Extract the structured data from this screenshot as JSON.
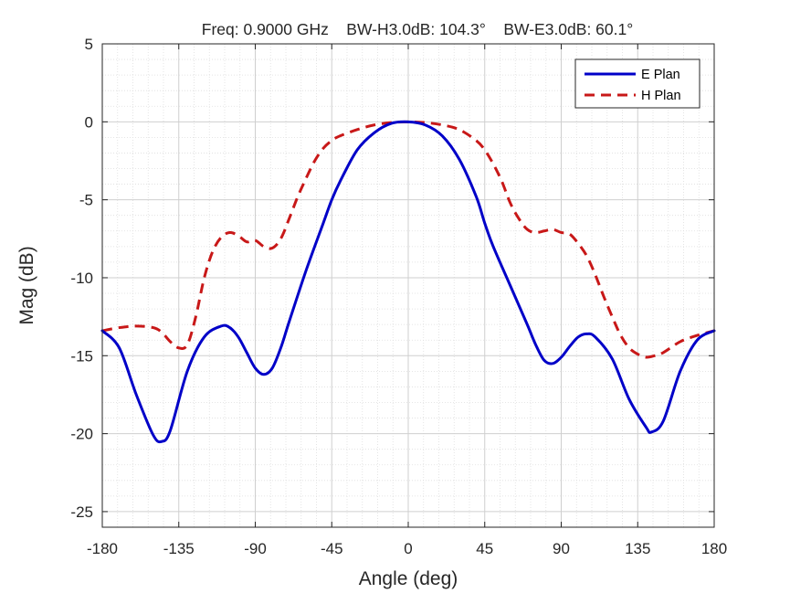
{
  "chart_data": {
    "type": "line",
    "title": "Freq: 0.9000 GHz    BW-H3.0dB: 104.3°    BW-E3.0dB: 60.1°",
    "xlabel": "Angle (deg)",
    "ylabel": "Mag (dB)",
    "xlim": [
      -180,
      180
    ],
    "ylim": [
      -26,
      5
    ],
    "xticks": [
      -180,
      -135,
      -90,
      -45,
      0,
      45,
      90,
      135,
      180
    ],
    "yticks": [
      5,
      0,
      -5,
      -10,
      -15,
      -20,
      -25
    ],
    "grid": true,
    "minor_grid": true,
    "legend_position": "top-right",
    "series": [
      {
        "name": "E Plan",
        "color": "#0000c8",
        "style": "solid",
        "x": [
          -180,
          -170,
          -160,
          -150,
          -145,
          -140,
          -130,
          -120,
          -110,
          -105,
          -100,
          -95,
          -90,
          -85,
          -80,
          -75,
          -70,
          -60,
          -50,
          -45,
          -40,
          -30,
          -20,
          -10,
          0,
          10,
          20,
          30,
          40,
          45,
          50,
          60,
          70,
          75,
          80,
          85,
          90,
          95,
          100,
          105,
          110,
          120,
          130,
          140,
          143,
          150,
          160,
          170,
          180
        ],
        "y": [
          -13.4,
          -14.5,
          -17.5,
          -20.1,
          -20.5,
          -19.8,
          -16.0,
          -13.8,
          -13.1,
          -13.2,
          -13.8,
          -14.8,
          -15.8,
          -16.2,
          -15.8,
          -14.5,
          -12.8,
          -9.5,
          -6.5,
          -5.0,
          -3.8,
          -1.8,
          -0.7,
          -0.1,
          0.0,
          -0.2,
          -0.9,
          -2.4,
          -4.8,
          -6.5,
          -8.0,
          -10.5,
          -13.0,
          -14.3,
          -15.3,
          -15.5,
          -15.1,
          -14.4,
          -13.8,
          -13.6,
          -13.8,
          -15.2,
          -17.8,
          -19.6,
          -19.9,
          -19.2,
          -16.0,
          -14.0,
          -13.4
        ]
      },
      {
        "name": "H Plan",
        "color": "#c81818",
        "style": "dashed",
        "x": [
          -180,
          -170,
          -160,
          -150,
          -145,
          -140,
          -135,
          -130,
          -125,
          -120,
          -115,
          -110,
          -105,
          -100,
          -95,
          -90,
          -85,
          -80,
          -75,
          -70,
          -65,
          -60,
          -55,
          -50,
          -45,
          -40,
          -30,
          -20,
          -10,
          0,
          10,
          20,
          30,
          40,
          45,
          50,
          55,
          60,
          65,
          70,
          75,
          80,
          85,
          90,
          95,
          100,
          105,
          110,
          115,
          120,
          125,
          130,
          135,
          140,
          145,
          150,
          160,
          170,
          180
        ],
        "y": [
          -13.4,
          -13.2,
          -13.1,
          -13.2,
          -13.5,
          -14.1,
          -14.5,
          -14.3,
          -12.5,
          -10.0,
          -8.3,
          -7.4,
          -7.1,
          -7.3,
          -7.7,
          -7.6,
          -8.0,
          -8.1,
          -7.5,
          -6.2,
          -4.8,
          -3.6,
          -2.5,
          -1.7,
          -1.2,
          -0.9,
          -0.5,
          -0.2,
          -0.05,
          0.0,
          -0.05,
          -0.2,
          -0.5,
          -1.2,
          -1.8,
          -2.7,
          -3.8,
          -5.2,
          -6.2,
          -6.9,
          -7.1,
          -7.0,
          -6.9,
          -7.1,
          -7.2,
          -7.8,
          -8.6,
          -9.8,
          -11.2,
          -12.5,
          -13.7,
          -14.5,
          -14.9,
          -15.1,
          -15.0,
          -14.8,
          -14.1,
          -13.7,
          -13.4
        ]
      }
    ]
  }
}
